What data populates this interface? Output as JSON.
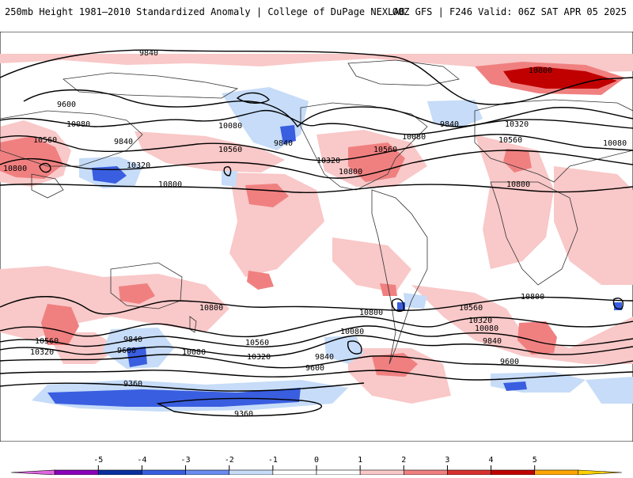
{
  "header": {
    "title_left": "250mb Height 1981–2010 Standardized Anomaly | College of DuPage NEXLAB",
    "title_right": "00Z GFS | F246 Valid: 06Z SAT APR 05 2025"
  },
  "map": {
    "contour_labels": [
      "9840",
      "9600",
      "10080",
      "9840",
      "10560",
      "10800",
      "10320",
      "10080",
      "10560",
      "9840",
      "10800",
      "10320",
      "10560",
      "10800",
      "10080",
      "9840",
      "10320",
      "10560",
      "10800",
      "10080",
      "10800",
      "10800",
      "10560",
      "10320",
      "9840",
      "9600",
      "10080",
      "10560",
      "10320",
      "9840",
      "9600",
      "10080",
      "10800",
      "10560",
      "10320",
      "10080",
      "9840",
      "9600",
      "10800",
      "9360",
      "9360"
    ]
  },
  "colorbar": {
    "ticks": [
      "-5",
      "-4",
      "-3",
      "-2",
      "-1",
      "0",
      "1",
      "2",
      "3",
      "4",
      "5"
    ],
    "colors": [
      "#e066e0",
      "#8a00b8",
      "#0a2fa0",
      "#3a5ee0",
      "#6a8cf0",
      "#c6dcf8",
      "#ffffff",
      "#ffffff",
      "#f9c8c8",
      "#f08080",
      "#d83030",
      "#c00000",
      "#ffa500",
      "#ffd000"
    ]
  }
}
